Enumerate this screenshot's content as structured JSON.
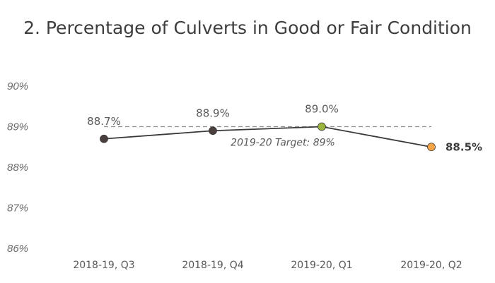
{
  "chart_data": {
    "type": "line",
    "title": "2. Percentage of Culverts in Good or Fair Condition",
    "categories": [
      "2018-19, Q3",
      "2018-19, Q4",
      "2019-20, Q1",
      "2019-20, Q2"
    ],
    "values": [
      88.7,
      88.9,
      89.0,
      88.5
    ],
    "data_labels": [
      "88.7%",
      "88.9%",
      "89.0%",
      "88.5%"
    ],
    "point_colors": [
      "#4a3f3c",
      "#4a3f3c",
      "#9bb53c",
      "#f5a445"
    ],
    "line_color": "#3a3a3a",
    "ylim": [
      86,
      90
    ],
    "yticks": [
      90,
      89,
      88,
      87,
      86
    ],
    "ytick_labels": [
      "90%",
      "89%",
      "88%",
      "87%",
      "86%"
    ],
    "target": {
      "value": 89,
      "label": "2019-20 Target: 89%",
      "color": "#8c8c8c"
    },
    "grid": false,
    "legend": "none"
  }
}
